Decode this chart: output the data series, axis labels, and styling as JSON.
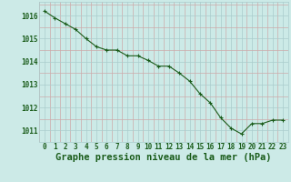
{
  "x": [
    0,
    1,
    2,
    3,
    4,
    5,
    6,
    7,
    8,
    9,
    10,
    11,
    12,
    13,
    14,
    15,
    16,
    17,
    18,
    19,
    20,
    21,
    22,
    23
  ],
  "y": [
    1016.2,
    1015.9,
    1015.65,
    1015.4,
    1015.0,
    1014.65,
    1014.5,
    1014.5,
    1014.25,
    1014.25,
    1014.05,
    1013.8,
    1013.8,
    1013.5,
    1013.15,
    1012.6,
    1012.2,
    1011.55,
    1011.1,
    1010.85,
    1011.3,
    1011.3,
    1011.45,
    1011.45
  ],
  "line_color": "#1a5c1a",
  "marker_color": "#1a5c1a",
  "bg_color": "#cceae7",
  "major_grid_color": "#aacccc",
  "minor_grid_color": "#ccaaaa",
  "text_color": "#1a5c1a",
  "xlabel": "Graphe pression niveau de la mer (hPa)",
  "xlim": [
    -0.5,
    23.5
  ],
  "ylim": [
    1010.5,
    1016.6
  ],
  "yticks": [
    1011,
    1012,
    1013,
    1014,
    1015,
    1016
  ],
  "xticks": [
    0,
    1,
    2,
    3,
    4,
    5,
    6,
    7,
    8,
    9,
    10,
    11,
    12,
    13,
    14,
    15,
    16,
    17,
    18,
    19,
    20,
    21,
    22,
    23
  ],
  "tick_fontsize": 5.5,
  "xlabel_fontsize": 7.5
}
